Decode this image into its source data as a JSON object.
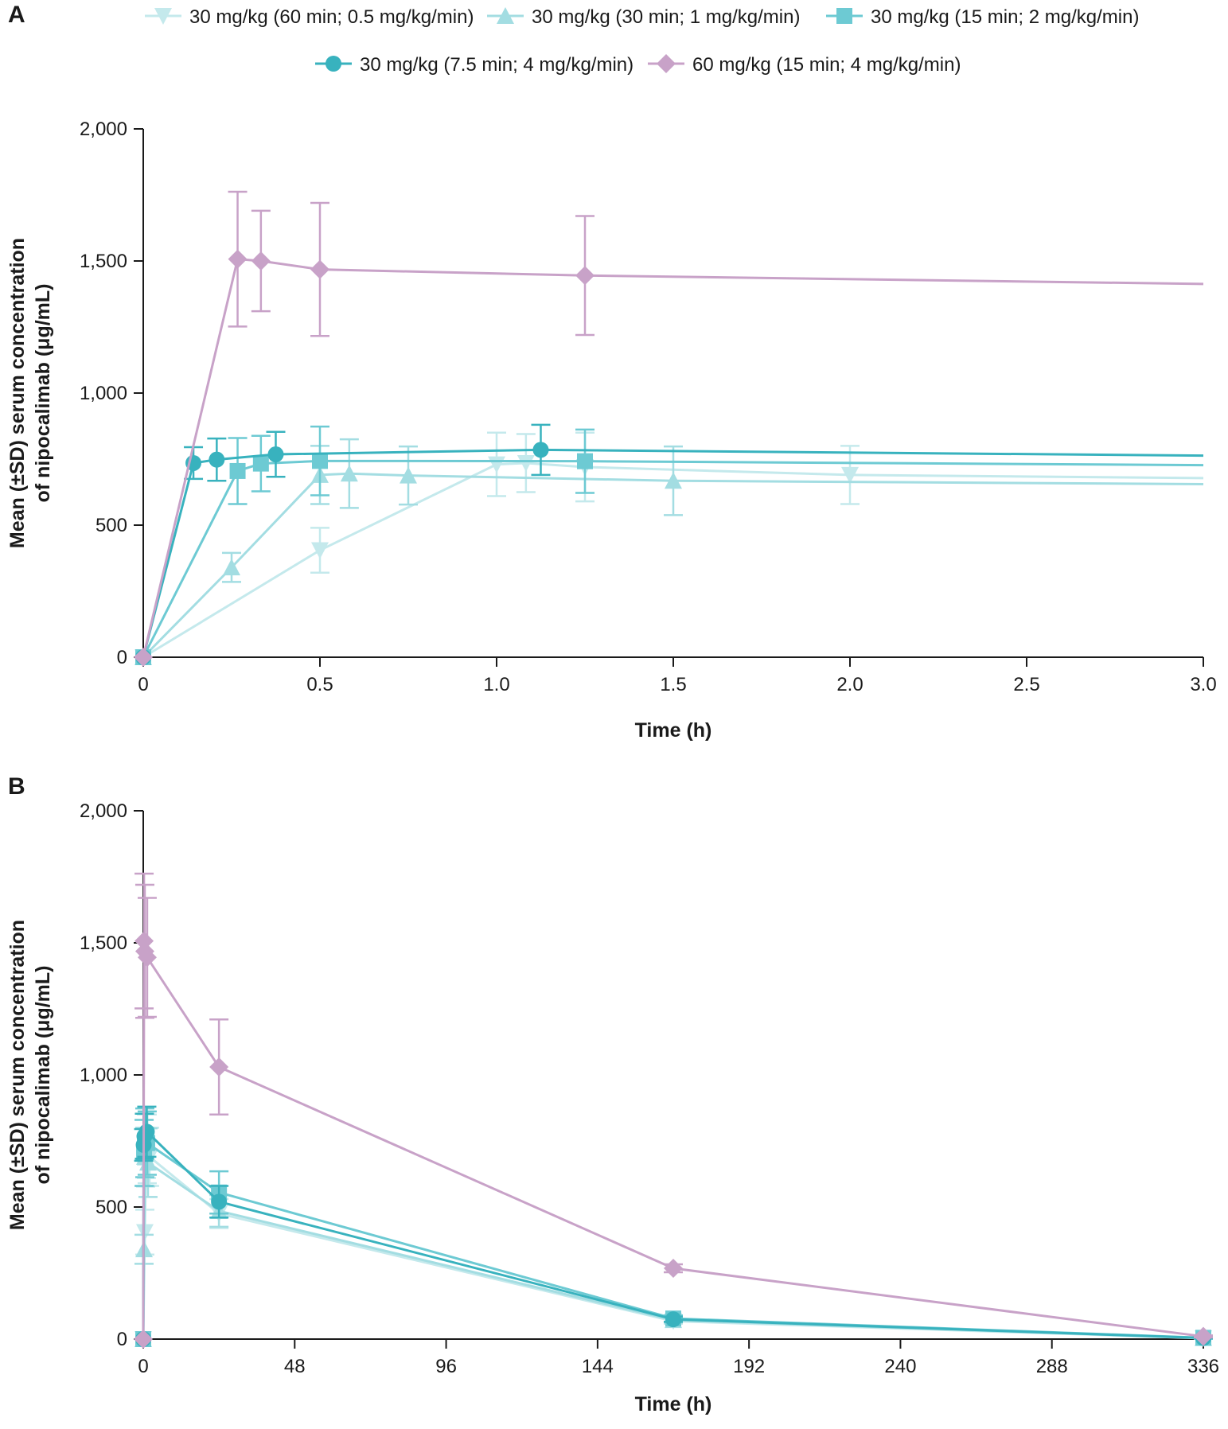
{
  "legend": [
    {
      "label": "30 mg/kg (60 min; 0.5 mg/kg/min)",
      "color": "#c4e9ec",
      "marker": "triangle-down"
    },
    {
      "label": "30 mg/kg (30 min; 1 mg/kg/min)",
      "color": "#a3dde2",
      "marker": "triangle-up"
    },
    {
      "label": "30 mg/kg (15 min; 2 mg/kg/min)",
      "color": "#6dcad3",
      "marker": "square"
    },
    {
      "label": "30 mg/kg (7.5 min; 4 mg/kg/min)",
      "color": "#38b2be",
      "marker": "circle"
    },
    {
      "label": "60 mg/kg (15 min; 4 mg/kg/min)",
      "color": "#c8a2c8",
      "marker": "diamond"
    }
  ],
  "chart_data": [
    {
      "panel": "A",
      "type": "line",
      "xlabel": "Time (h)",
      "ylabel_lines": [
        "Mean (±SD) serum concentration",
        "of nipocalimab (μg/mL)"
      ],
      "xlim": [
        0,
        3
      ],
      "ylim": [
        0,
        2000
      ],
      "xticks": [
        0,
        0.5,
        1.0,
        1.5,
        2.0,
        2.5,
        3.0
      ],
      "xtick_labels": [
        "0",
        "0.5",
        "1.0",
        "1.5",
        "2.0",
        "2.5",
        "3.0"
      ],
      "yticks": [
        0,
        500,
        1000,
        1500,
        2000
      ],
      "ytick_labels": [
        "0",
        "500",
        "1,000",
        "1,500",
        "2,000"
      ],
      "series": [
        {
          "name": "30 mg/kg (60 min; 0.5 mg/kg/min)",
          "end_x": 3.0,
          "end_y": 678,
          "points": [
            {
              "x": 0,
              "y": 0,
              "sd": 0
            },
            {
              "x": 0.5,
              "y": 405,
              "sd": 85
            },
            {
              "x": 1.0,
              "y": 730,
              "sd": 120
            },
            {
              "x": 1.083,
              "y": 735,
              "sd": 110
            },
            {
              "x": 1.25,
              "y": 720,
              "sd": 130
            },
            {
              "x": 2.0,
              "y": 690,
              "sd": 110
            }
          ]
        },
        {
          "name": "30 mg/kg (30 min; 1 mg/kg/min)",
          "end_x": 3.0,
          "end_y": 655,
          "points": [
            {
              "x": 0,
              "y": 0,
              "sd": 0
            },
            {
              "x": 0.25,
              "y": 340,
              "sd": 55
            },
            {
              "x": 0.5,
              "y": 690,
              "sd": 110
            },
            {
              "x": 0.583,
              "y": 695,
              "sd": 130
            },
            {
              "x": 0.75,
              "y": 688,
              "sd": 110
            },
            {
              "x": 1.5,
              "y": 668,
              "sd": 130
            }
          ]
        },
        {
          "name": "30 mg/kg (15 min; 2 mg/kg/min)",
          "end_x": 3.0,
          "end_y": 727,
          "points": [
            {
              "x": 0,
              "y": 0,
              "sd": 0
            },
            {
              "x": 0.267,
              "y": 705,
              "sd": 125
            },
            {
              "x": 0.333,
              "y": 733,
              "sd": 105
            },
            {
              "x": 0.5,
              "y": 743,
              "sd": 130
            },
            {
              "x": 1.25,
              "y": 742,
              "sd": 120
            }
          ]
        },
        {
          "name": "30 mg/kg (7.5 min; 4 mg/kg/min)",
          "end_x": 3.0,
          "end_y": 763,
          "points": [
            {
              "x": 0,
              "y": 0,
              "sd": 0
            },
            {
              "x": 0.142,
              "y": 735,
              "sd": 60
            },
            {
              "x": 0.208,
              "y": 748,
              "sd": 80
            },
            {
              "x": 0.375,
              "y": 768,
              "sd": 85
            },
            {
              "x": 1.125,
              "y": 785,
              "sd": 95
            }
          ]
        },
        {
          "name": "60 mg/kg (15 min; 4 mg/kg/min)",
          "end_x": 3.0,
          "end_y": 1413,
          "points": [
            {
              "x": 0,
              "y": 0,
              "sd": 0
            },
            {
              "x": 0.267,
              "y": 1507,
              "sd": 255
            },
            {
              "x": 0.333,
              "y": 1500,
              "sd": 190
            },
            {
              "x": 0.5,
              "y": 1468,
              "sd": 252
            },
            {
              "x": 1.25,
              "y": 1445,
              "sd": 225
            }
          ]
        }
      ]
    },
    {
      "panel": "B",
      "type": "line",
      "xlabel": "Time (h)",
      "ylabel_lines": [
        "Mean (±SD) serum concentration",
        "of nipocalimab (μg/mL)"
      ],
      "xlim": [
        0,
        336
      ],
      "ylim": [
        0,
        2000
      ],
      "xticks": [
        0,
        48,
        96,
        144,
        192,
        240,
        288,
        336
      ],
      "xtick_labels": [
        "0",
        "48",
        "96",
        "144",
        "192",
        "240",
        "288",
        "336"
      ],
      "yticks": [
        0,
        500,
        1000,
        1500,
        2000
      ],
      "ytick_labels": [
        "0",
        "500",
        "1,000",
        "1,500",
        "2,000"
      ],
      "series": [
        {
          "name": "30 mg/kg (60 min; 0.5 mg/kg/min)",
          "points": [
            {
              "x": 0,
              "y": 0,
              "sd": 0
            },
            {
              "x": 0.5,
              "y": 405,
              "sd": 85
            },
            {
              "x": 1.0,
              "y": 730,
              "sd": 120
            },
            {
              "x": 1.25,
              "y": 720,
              "sd": 130
            },
            {
              "x": 2.0,
              "y": 690,
              "sd": 110
            },
            {
              "x": 24,
              "y": 475,
              "sd": 55
            },
            {
              "x": 168,
              "y": 68,
              "sd": 10
            },
            {
              "x": 336,
              "y": 3,
              "sd": 2
            }
          ]
        },
        {
          "name": "30 mg/kg (30 min; 1 mg/kg/min)",
          "points": [
            {
              "x": 0,
              "y": 0,
              "sd": 0
            },
            {
              "x": 0.25,
              "y": 340,
              "sd": 55
            },
            {
              "x": 0.5,
              "y": 690,
              "sd": 110
            },
            {
              "x": 0.75,
              "y": 688,
              "sd": 110
            },
            {
              "x": 1.5,
              "y": 668,
              "sd": 130
            },
            {
              "x": 24,
              "y": 485,
              "sd": 60
            },
            {
              "x": 168,
              "y": 72,
              "sd": 10
            },
            {
              "x": 336,
              "y": 4,
              "sd": 2
            }
          ]
        },
        {
          "name": "30 mg/kg (15 min; 2 mg/kg/min)",
          "points": [
            {
              "x": 0,
              "y": 0,
              "sd": 0
            },
            {
              "x": 0.267,
              "y": 705,
              "sd": 125
            },
            {
              "x": 0.5,
              "y": 743,
              "sd": 130
            },
            {
              "x": 1.25,
              "y": 742,
              "sd": 120
            },
            {
              "x": 24,
              "y": 555,
              "sd": 80
            },
            {
              "x": 168,
              "y": 78,
              "sd": 12
            },
            {
              "x": 336,
              "y": 5,
              "sd": 2
            }
          ]
        },
        {
          "name": "30 mg/kg (7.5 min; 4 mg/kg/min)",
          "points": [
            {
              "x": 0,
              "y": 0,
              "sd": 0
            },
            {
              "x": 0.142,
              "y": 735,
              "sd": 60
            },
            {
              "x": 0.375,
              "y": 768,
              "sd": 85
            },
            {
              "x": 1.125,
              "y": 785,
              "sd": 95
            },
            {
              "x": 24,
              "y": 520,
              "sd": 60
            },
            {
              "x": 168,
              "y": 75,
              "sd": 10
            },
            {
              "x": 336,
              "y": 4,
              "sd": 2
            }
          ]
        },
        {
          "name": "60 mg/kg (15 min; 4 mg/kg/min)",
          "points": [
            {
              "x": 0,
              "y": 0,
              "sd": 0
            },
            {
              "x": 0.267,
              "y": 1507,
              "sd": 255
            },
            {
              "x": 0.5,
              "y": 1468,
              "sd": 252
            },
            {
              "x": 1.25,
              "y": 1445,
              "sd": 225
            },
            {
              "x": 24,
              "y": 1030,
              "sd": 180
            },
            {
              "x": 168,
              "y": 268,
              "sd": 15
            },
            {
              "x": 336,
              "y": 10,
              "sd": 4
            }
          ]
        }
      ]
    }
  ]
}
